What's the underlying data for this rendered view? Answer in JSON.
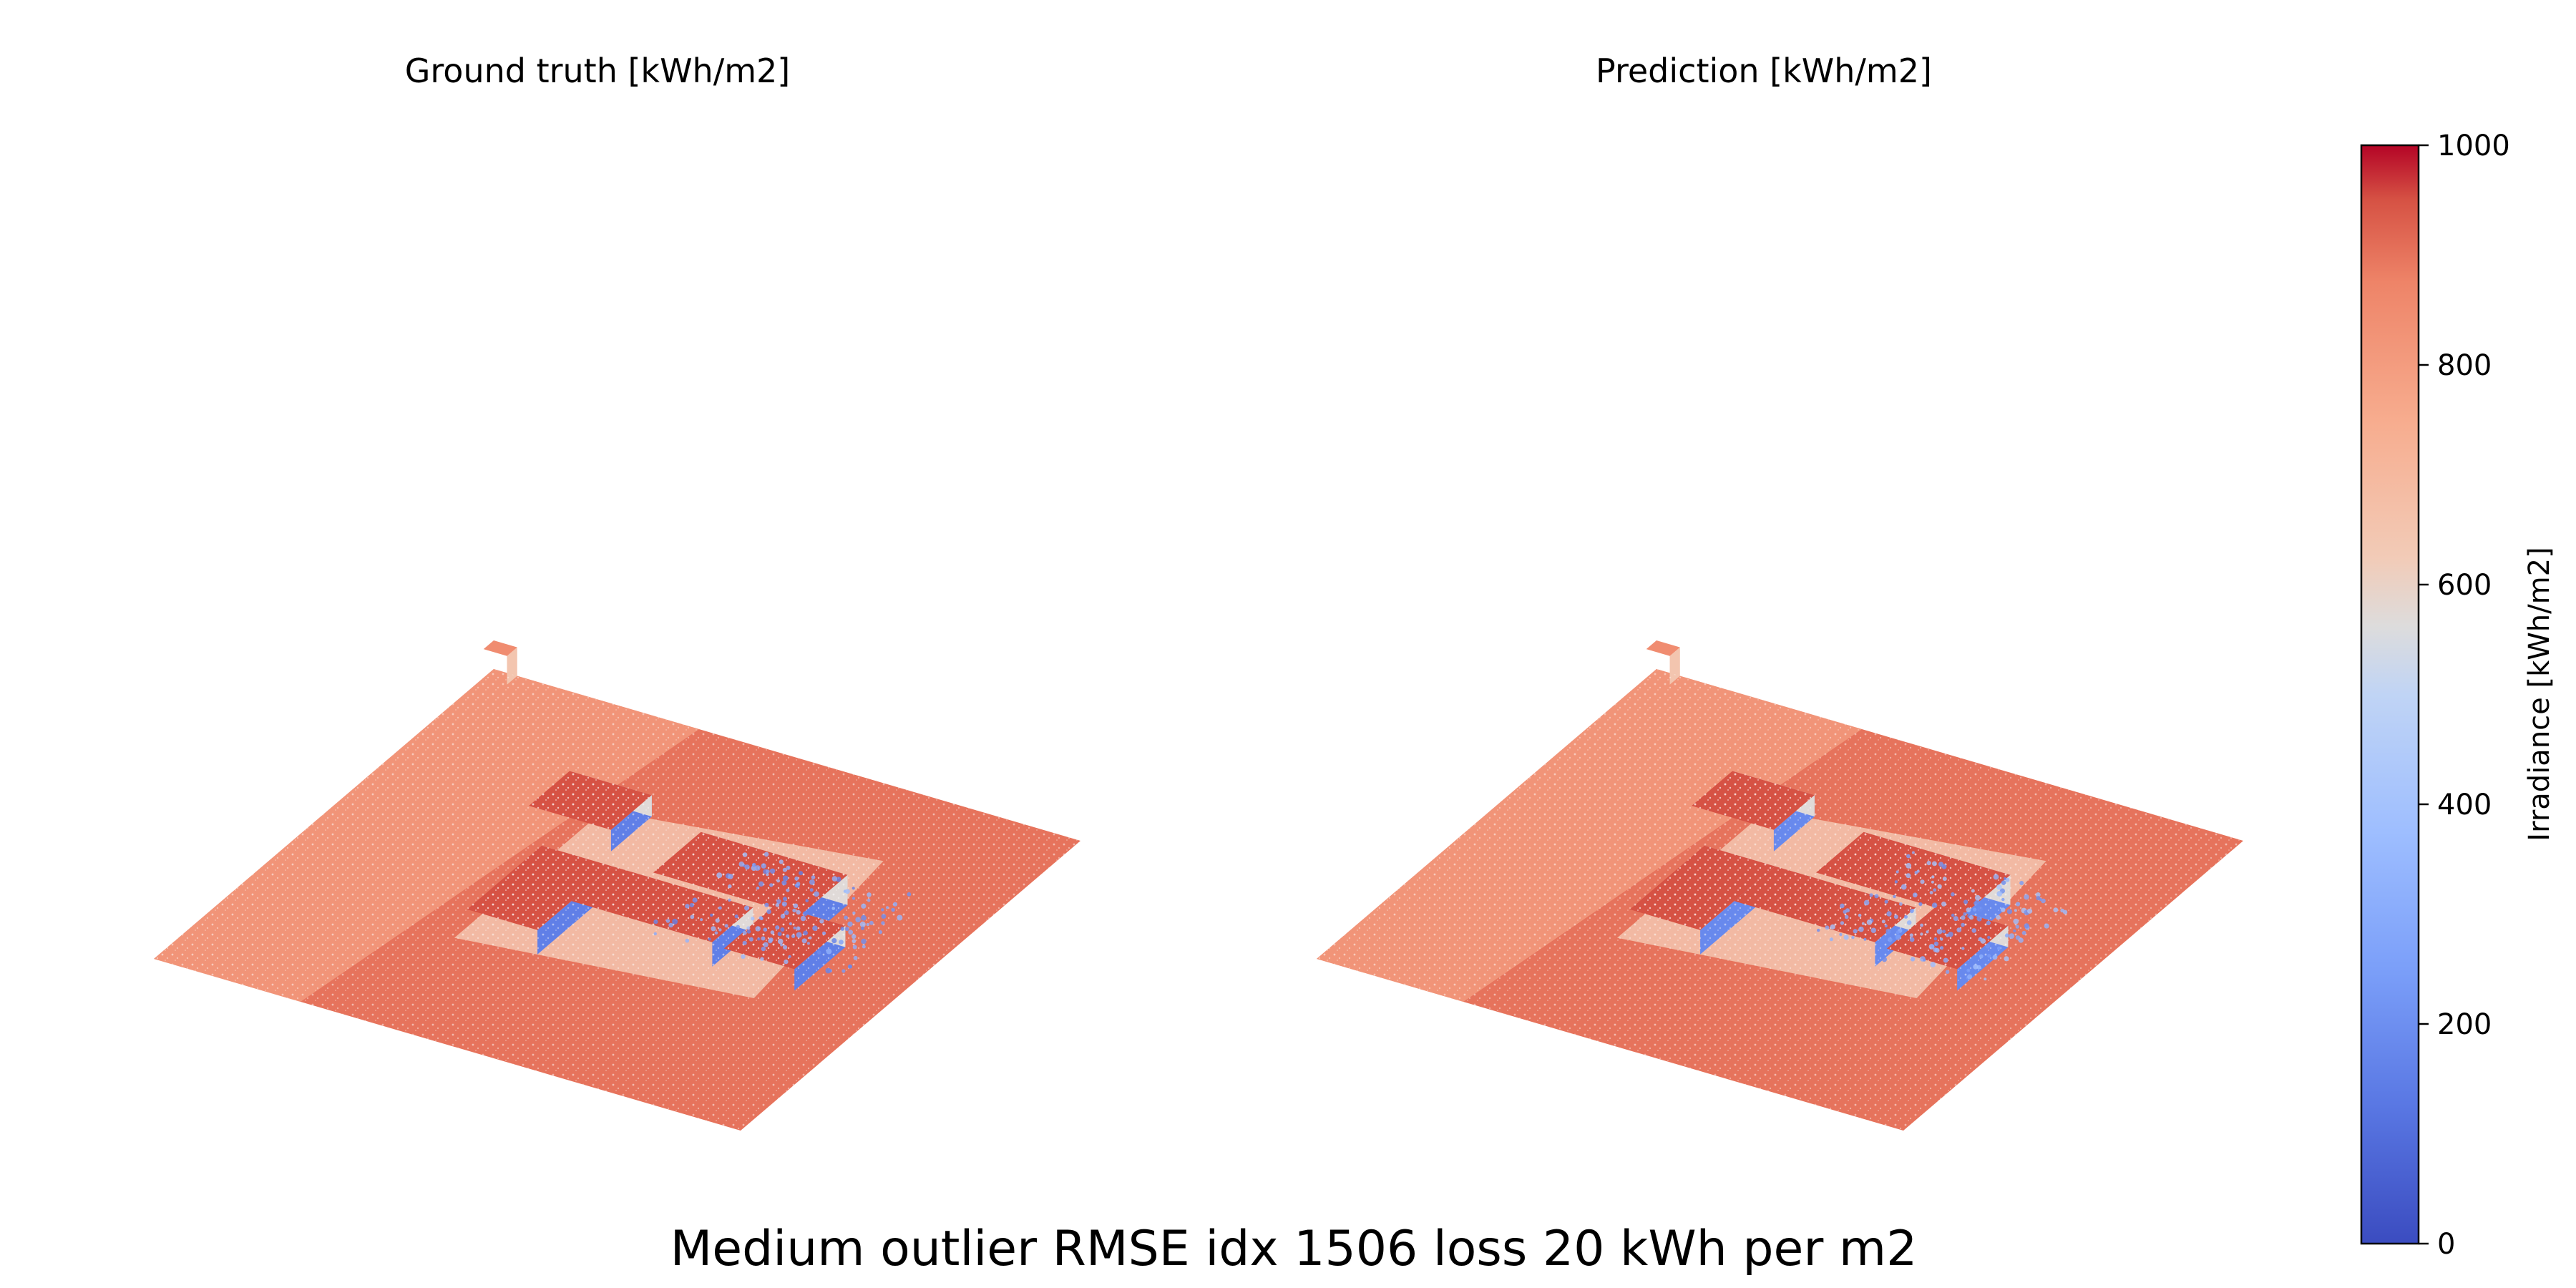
{
  "figure": {
    "suptitle": "Medium outlier RMSE idx 1506 loss 20 kWh per m2",
    "colors": {
      "low": "#3b4cc0",
      "mid": "#dddddd",
      "high": "#b40426",
      "colormap": "coolwarm"
    }
  },
  "chart_data": [
    {
      "type": "scatter",
      "projection": "3d",
      "title": "Ground truth [kWh/m2]",
      "description_of_values": "point cloud of ground plane with L-shaped building blocks, colored by irradiance",
      "value_range": [
        0,
        1000
      ],
      "typical_values": {
        "ground_plane": 900,
        "ground_near_buildings": 650,
        "building_roofs": 950,
        "building_walls_shaded": 150
      }
    },
    {
      "type": "scatter",
      "projection": "3d",
      "title": "Prediction [kWh/m2]",
      "description_of_values": "point cloud of ground plane with L-shaped building blocks, colored by irradiance",
      "value_range": [
        0,
        1000
      ],
      "typical_values": {
        "ground_plane": 900,
        "ground_near_buildings": 650,
        "building_roofs": 950,
        "building_walls_shaded": 180
      }
    },
    {
      "type": "colorbar",
      "label": "Irradiance [kWh/m2]",
      "ylim": [
        0,
        1000
      ],
      "ticks": [
        "0",
        "200",
        "400",
        "600",
        "800",
        "1000"
      ],
      "colormap": "coolwarm"
    }
  ]
}
